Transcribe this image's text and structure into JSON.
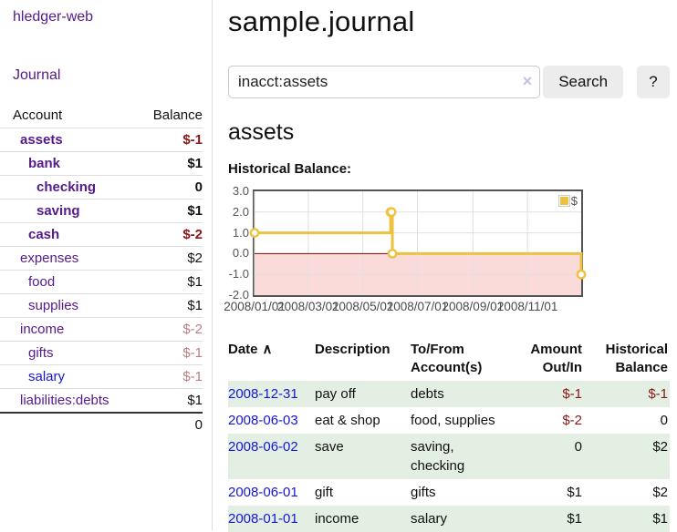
{
  "colors": {
    "purple": "#551a8b",
    "blue": "#1515d8",
    "negative": "#8a1616",
    "negative_muted": "#b97f7f",
    "row_stripe": "#e3efe3",
    "button_bg": "#ececec",
    "chart_line": "#edc240",
    "chart_negative_region": "#fbdada",
    "chart_zero_line": "#8b0000",
    "chart_grid": "#e0e0e0",
    "chart_border": "#545454"
  },
  "sidebar": {
    "app_title": "hledger-web",
    "journal_link": "Journal",
    "accounts_table": {
      "col_account": "Account",
      "col_balance": "Balance",
      "rows": [
        {
          "name": "assets",
          "depth": 1,
          "bold": true,
          "balance": "$-1",
          "neg": true
        },
        {
          "name": "bank",
          "depth": 2,
          "bold": true,
          "balance": "$1",
          "neg": false
        },
        {
          "name": "checking",
          "depth": 3,
          "bold": true,
          "balance": "0",
          "neg": false
        },
        {
          "name": "saving",
          "depth": 3,
          "bold": true,
          "balance": "$1",
          "neg": false
        },
        {
          "name": "cash",
          "depth": 2,
          "bold": true,
          "balance": "$-2",
          "neg": true
        },
        {
          "name": "expenses",
          "depth": 1,
          "bold": false,
          "balance": "$2",
          "neg": false
        },
        {
          "name": "food",
          "depth": 2,
          "bold": false,
          "balance": "$1",
          "neg": false
        },
        {
          "name": "supplies",
          "depth": 2,
          "bold": false,
          "balance": "$1",
          "neg": false
        },
        {
          "name": "income",
          "depth": 1,
          "bold": false,
          "balance": "$-2",
          "neg": true
        },
        {
          "name": "gifts",
          "depth": 2,
          "bold": false,
          "balance": "$-1",
          "neg": true
        },
        {
          "name": "salary",
          "depth": 2,
          "bold": false,
          "balance": "$-1",
          "neg": true,
          "link_color": "blue"
        },
        {
          "name": "liabilities:debts",
          "depth": 1,
          "bold": false,
          "balance": "$1",
          "neg": false
        }
      ],
      "total": "0"
    }
  },
  "header": {
    "title": "sample.journal"
  },
  "search": {
    "value": "inacct:assets",
    "clear_icon": "×",
    "search_label": "Search",
    "help_label": "?"
  },
  "account_page": {
    "title": "assets",
    "chart_label": "Historical Balance:"
  },
  "chart_data": {
    "type": "line",
    "step": true,
    "title": "Historical Balance",
    "series": [
      {
        "name": "$",
        "color": "#edc240",
        "points": [
          [
            "2008-01-01",
            1
          ],
          [
            "2008-06-01",
            2
          ],
          [
            "2008-06-02",
            2
          ],
          [
            "2008-06-03",
            0
          ],
          [
            "2008-12-31",
            -1
          ]
        ]
      }
    ],
    "x_range": [
      "2008-01-01",
      "2008-12-31"
    ],
    "ylim": [
      -2,
      3
    ],
    "y_ticks": [
      {
        "label": "3.0",
        "value": 3
      },
      {
        "label": "2.0",
        "value": 2
      },
      {
        "label": "1.0",
        "value": 1
      },
      {
        "label": "0.0",
        "value": 0
      },
      {
        "label": "-1.0",
        "value": -1
      },
      {
        "label": "-2.0",
        "value": -2
      }
    ],
    "x_ticks": [
      {
        "label": "2008/01/01",
        "date": "2008-01-01"
      },
      {
        "label": "2008/03/01",
        "date": "2008-03-01"
      },
      {
        "label": "2008/05/01",
        "date": "2008-05-01"
      },
      {
        "label": "2008/07/01",
        "date": "2008-07-01"
      },
      {
        "label": "2008/09/01",
        "date": "2008-09-01"
      },
      {
        "label": "2008/11/01",
        "date": "2008-11-01"
      }
    ],
    "legend": {
      "label": "$",
      "position": "top-right"
    },
    "grid": true,
    "negative_region_shaded": true
  },
  "register": {
    "col_date": "Date",
    "sort_icon": "∧",
    "col_description": "Description",
    "col_accounts": "To/From Account(s)",
    "col_amount": "Amount Out/In",
    "col_balance": "Historical Balance",
    "rows": [
      {
        "date": "2008-12-31",
        "description": "pay off",
        "accounts": "debts",
        "amount": "$-1",
        "amount_neg": true,
        "balance": "$-1",
        "balance_neg": true
      },
      {
        "date": "2008-06-03",
        "description": "eat & shop",
        "accounts": "food, supplies",
        "amount": "$-2",
        "amount_neg": true,
        "balance": "0",
        "balance_neg": false
      },
      {
        "date": "2008-06-02",
        "description": "save",
        "accounts": "saving, checking",
        "amount": "0",
        "amount_neg": false,
        "balance": "$2",
        "balance_neg": false
      },
      {
        "date": "2008-06-01",
        "description": "gift",
        "accounts": "gifts",
        "amount": "$1",
        "amount_neg": false,
        "balance": "$2",
        "balance_neg": false
      },
      {
        "date": "2008-01-01",
        "description": "income",
        "accounts": "salary",
        "amount": "$1",
        "amount_neg": false,
        "balance": "$1",
        "balance_neg": false
      }
    ]
  }
}
